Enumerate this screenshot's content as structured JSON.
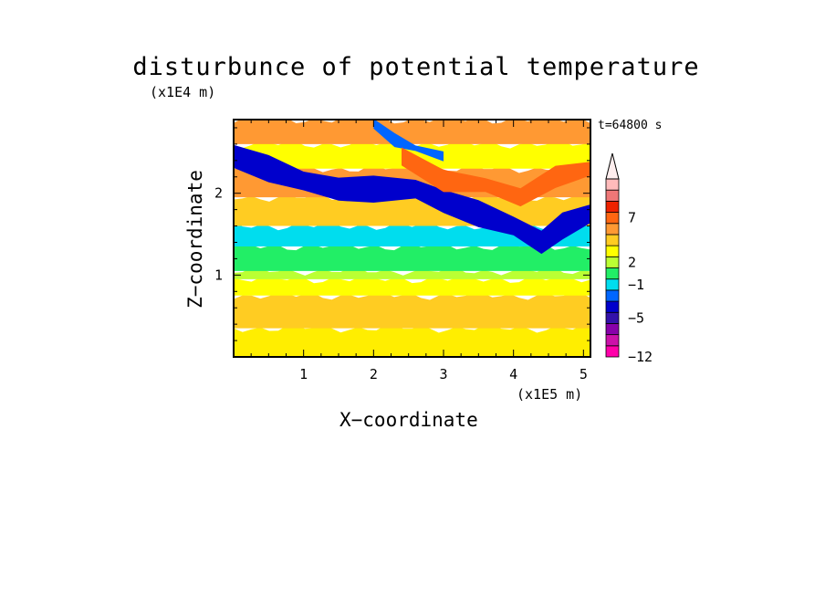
{
  "chart_data": {
    "type": "heatmap",
    "title": "disturbunce of potential temperature",
    "time_label": "t=64800 s",
    "xlabel": "X−coordinate",
    "ylabel": "Z−coordinate",
    "x_unit": "(x1E5 m)",
    "y_unit": "(x1E4 m)",
    "xlim": [
      0,
      5.1
    ],
    "ylim": [
      0,
      2.9
    ],
    "x_ticks": [
      {
        "value": 1,
        "label": "1"
      },
      {
        "value": 2,
        "label": "2"
      },
      {
        "value": 3,
        "label": "3"
      },
      {
        "value": 4,
        "label": "4"
      },
      {
        "value": 5,
        "label": "5"
      }
    ],
    "y_ticks": [
      {
        "value": 1,
        "label": "1"
      },
      {
        "value": 2,
        "label": "2"
      }
    ],
    "colorbar": {
      "levels": [
        {
          "color": "#ff00aa"
        },
        {
          "color": "#cc11aa"
        },
        {
          "color": "#8800aa"
        },
        {
          "color": "#3311aa"
        },
        {
          "color": "#0000cc"
        },
        {
          "color": "#0066ff"
        },
        {
          "color": "#00ddee"
        },
        {
          "color": "#22ee66"
        },
        {
          "color": "#bbff33"
        },
        {
          "color": "#ffff00"
        },
        {
          "color": "#ffcc22"
        },
        {
          "color": "#ff9933"
        },
        {
          "color": "#ff6611"
        },
        {
          "color": "#ee2200"
        },
        {
          "color": "#ee7777"
        },
        {
          "color": "#ffbbbb"
        }
      ],
      "overflow_color": "#ffeeee",
      "labels": [
        {
          "level_edge": 0,
          "label": "−12"
        },
        {
          "level_edge": 3.5,
          "label": "−5"
        },
        {
          "level_edge": 6.5,
          "label": "−1"
        },
        {
          "level_edge": 8.5,
          "label": "2"
        },
        {
          "level_edge": 12.5,
          "label": "7"
        }
      ]
    },
    "bands": [
      {
        "zlow": 0,
        "zhigh": 0.35,
        "color": "#ffee00"
      },
      {
        "zlow": 0.35,
        "zhigh": 0.75,
        "color": "#ffcc22"
      },
      {
        "zlow": 0.75,
        "zhigh": 0.95,
        "color": "#ffff00"
      },
      {
        "zlow": 0.95,
        "zhigh": 1.05,
        "color": "#bbff33"
      },
      {
        "zlow": 1.05,
        "zhigh": 1.35,
        "color": "#22ee66"
      },
      {
        "zlow": 1.35,
        "zhigh": 1.6,
        "color": "#00ddee"
      },
      {
        "zlow": 1.6,
        "zhigh": 1.95,
        "color": "#ffcc22"
      },
      {
        "zlow": 1.95,
        "zhigh": 2.3,
        "color": "#ff9933"
      },
      {
        "zlow": 2.3,
        "zhigh": 2.6,
        "color": "#ffff00"
      },
      {
        "zlow": 2.6,
        "zhigh": 2.9,
        "color": "#ff9933"
      }
    ],
    "features": [
      {
        "kind": "blue_band",
        "points": [
          [
            0,
            2.45
          ],
          [
            0.5,
            2.3
          ],
          [
            1.0,
            2.15
          ],
          [
            1.5,
            2.05
          ],
          [
            2.0,
            2.05
          ],
          [
            2.6,
            2.05
          ],
          [
            3.0,
            1.9
          ],
          [
            3.5,
            1.75
          ],
          [
            4.0,
            1.6
          ],
          [
            4.4,
            1.4
          ],
          [
            4.7,
            1.6
          ],
          [
            5.1,
            1.75
          ]
        ],
        "width": 0.28,
        "color": "#0000cc"
      },
      {
        "kind": "blue_band_upper",
        "points": [
          [
            2.0,
            2.85
          ],
          [
            2.3,
            2.65
          ],
          [
            2.6,
            2.55
          ],
          [
            3.0,
            2.45
          ]
        ],
        "width": 0.12,
        "color": "#0066ff"
      },
      {
        "kind": "orange_band",
        "points": [
          [
            2.4,
            2.45
          ],
          [
            3.0,
            2.15
          ],
          [
            3.6,
            2.1
          ],
          [
            4.1,
            1.95
          ],
          [
            4.6,
            2.2
          ],
          [
            5.1,
            2.3
          ]
        ],
        "width": 0.22,
        "color": "#ff6611"
      }
    ]
  }
}
